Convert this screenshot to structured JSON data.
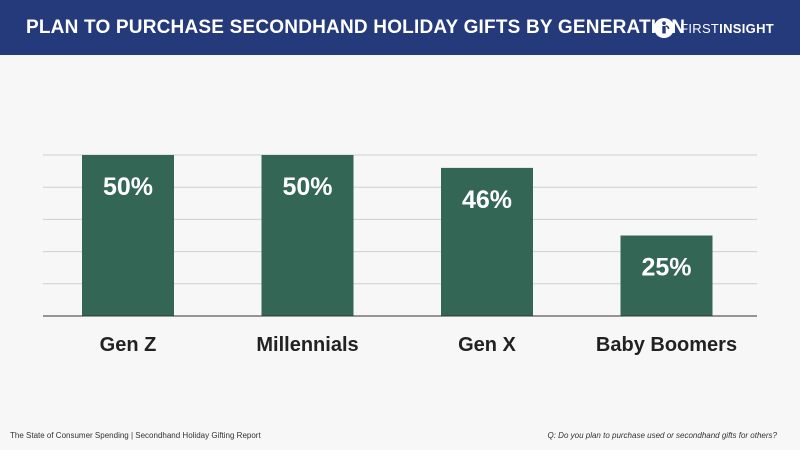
{
  "header": {
    "title": "PLAN TO PURCHASE SECONDHAND HOLIDAY GIFTS BY GENERATION",
    "logo_first": "FIRST",
    "logo_insight": "INSIGHT"
  },
  "footer": {
    "source": "The State of Consumer Spending | Secondhand Holiday Gifting Report",
    "question": "Q: Do you plan to purchase used or secondhand gifts for others?"
  },
  "colors": {
    "header_bg": "#253a7b",
    "bar": "#336654",
    "background": "#f7f7f7"
  },
  "chart_data": {
    "type": "bar",
    "title": "PLAN TO PURCHASE SECONDHAND HOLIDAY GIFTS BY GENERATION",
    "categories": [
      "Gen Z",
      "Millennials",
      "Gen X",
      "Baby Boomers"
    ],
    "values": [
      50,
      50,
      46,
      25
    ],
    "value_labels": [
      "50%",
      "50%",
      "46%",
      "25%"
    ],
    "unit": "%",
    "xlabel": "",
    "ylabel": "",
    "ylim": [
      0,
      50
    ],
    "grid": true,
    "legend": "none"
  }
}
